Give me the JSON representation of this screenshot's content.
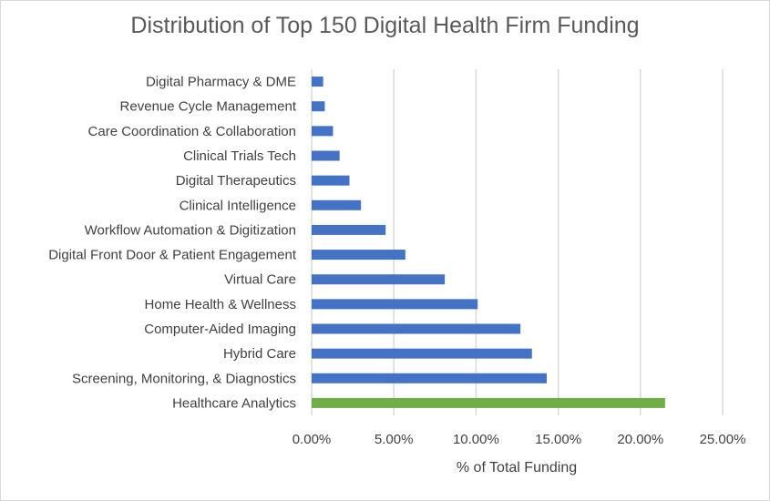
{
  "chart_data": {
    "type": "bar",
    "orientation": "horizontal",
    "title": "Distribution of Top 150 Digital Health Firm Funding",
    "xlabel": "% of Total Funding",
    "ylabel": "",
    "xlim": [
      0,
      25
    ],
    "x_ticks": [
      "0.00%",
      "5.00%",
      "10.00%",
      "15.00%",
      "20.00%",
      "25.00%"
    ],
    "x_tick_values": [
      0,
      5,
      10,
      15,
      20,
      25
    ],
    "grid": "vertical gridlines on",
    "legend": "none",
    "categories": [
      "Digital Pharmacy & DME",
      "Revenue Cycle Management",
      "Care Coordination & Collaboration",
      "Clinical Trials Tech",
      "Digital Therapeutics",
      "Clinical Intelligence",
      "Workflow Automation & Digitization",
      "Digital Front Door & Patient Engagement",
      "Virtual Care",
      "Home Health & Wellness",
      "Computer-Aided Imaging",
      "Hybrid Care",
      "Screening, Monitoring, & Diagnostics",
      "Healthcare Analytics"
    ],
    "values": [
      0.7,
      0.8,
      1.3,
      1.7,
      2.3,
      3.0,
      4.5,
      5.7,
      8.1,
      10.1,
      12.7,
      13.4,
      14.3,
      21.5
    ],
    "colors": {
      "default": "#4472c4",
      "highlight": "#70ad47",
      "highlight_category": "Healthcare Analytics"
    }
  }
}
